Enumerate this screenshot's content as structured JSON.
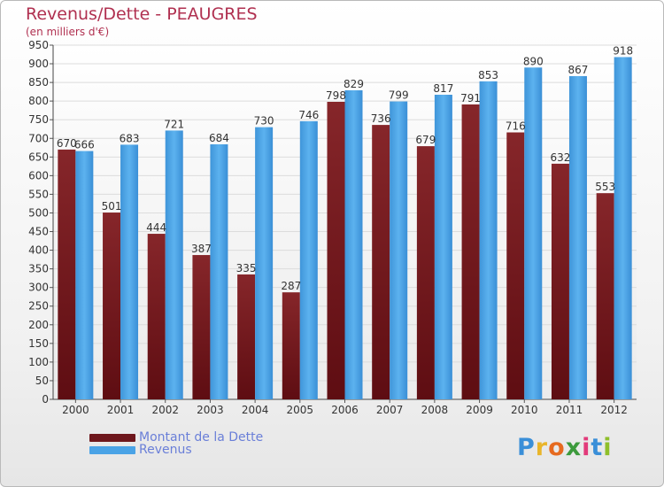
{
  "header": {
    "title": "Revenus/Dette - PEAUGRES",
    "subtitle": "(en milliers d'€)"
  },
  "legend": {
    "debt_label": "Montant de la Dette",
    "revenue_label": "Revenus"
  },
  "logo": {
    "letters": [
      "P",
      "r",
      "o",
      "x",
      "i",
      "t",
      "i"
    ],
    "colors": [
      "#3a8fd8",
      "#e9b52a",
      "#e66a1f",
      "#3c9a3c",
      "#e23a7a",
      "#3a8fd8",
      "#8fbf2a"
    ]
  },
  "colors": {
    "debt": "#7a1e22",
    "revenue": "#4aa3e6",
    "title": "#b03050",
    "legend_text": "#6a7fd8"
  },
  "chart_data": {
    "type": "bar",
    "categories": [
      "2000",
      "2001",
      "2002",
      "2003",
      "2004",
      "2005",
      "2006",
      "2007",
      "2008",
      "2009",
      "2010",
      "2011",
      "2012"
    ],
    "series": [
      {
        "name": "Montant de la Dette",
        "values": [
          670,
          501,
          444,
          387,
          335,
          287,
          798,
          736,
          679,
          791,
          716,
          632,
          553
        ]
      },
      {
        "name": "Revenus",
        "values": [
          666,
          683,
          721,
          684,
          730,
          746,
          829,
          799,
          817,
          853,
          890,
          867,
          918
        ]
      }
    ],
    "ylim": [
      0,
      950
    ],
    "yticks": [
      0,
      50,
      100,
      150,
      200,
      250,
      300,
      350,
      400,
      450,
      500,
      550,
      600,
      650,
      700,
      750,
      800,
      850,
      900,
      950
    ],
    "grid": true,
    "legend_position": "bottom-left"
  }
}
